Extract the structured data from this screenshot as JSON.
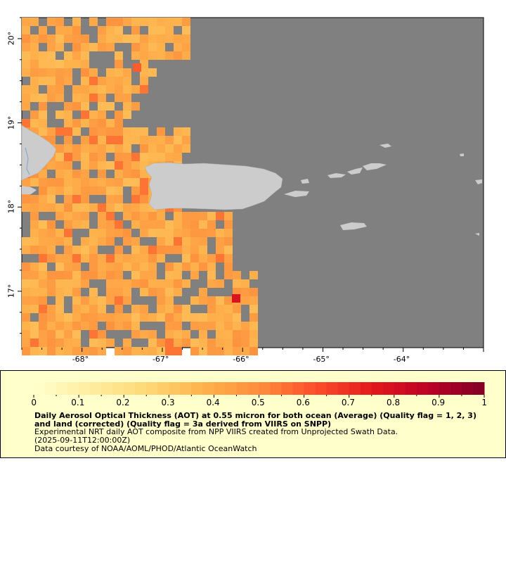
{
  "map": {
    "lon_range": [
      -68.75,
      -63.0
    ],
    "lat_range": [
      16.33,
      20.25
    ],
    "colors": {
      "ocean": "#808080",
      "land": "#cccccc",
      "lakes": "#88aacc"
    },
    "lon_ticks": [
      {
        "value": -68,
        "label": "-68°"
      },
      {
        "value": -67,
        "label": "-67°"
      },
      {
        "value": -66,
        "label": "-66°"
      },
      {
        "value": -65,
        "label": "-65°"
      },
      {
        "value": -64,
        "label": "-64°"
      }
    ],
    "lat_ticks": [
      {
        "value": 20,
        "label": "20°"
      },
      {
        "value": 19,
        "label": "19°"
      },
      {
        "value": 18,
        "label": "18°"
      },
      {
        "value": 17,
        "label": "17°"
      }
    ]
  },
  "colorbar": {
    "min": 0,
    "max": 1,
    "labels": [
      "0",
      "0.1",
      "0.2",
      "0.3",
      "0.4",
      "0.5",
      "0.6",
      "0.7",
      "0.8",
      "0.9",
      "1"
    ],
    "stops": [
      "#ffffcc",
      "#ffeda0",
      "#fed976",
      "#feb24c",
      "#fd8d3c",
      "#fc4e2a",
      "#e31a1c",
      "#bd0026",
      "#800026"
    ]
  },
  "caption": {
    "title": "Daily Aerosol Optical Thickness (AOT) at 0.55 micron for both ocean (Average) (Quality flag = 1, 2, 3) and land (corrected) (Quality flag = 3a derived from VIIRS on SNPP)",
    "line1": "Experimental NRT daily AOT composite from NPP VIIRS created from Unprojected Swath Data.",
    "line2": "(2025-09-11T12:00:00Z)",
    "line3": "Data courtesy of NOAA/AOML/PHOD/Atlantic OceanWatch"
  }
}
